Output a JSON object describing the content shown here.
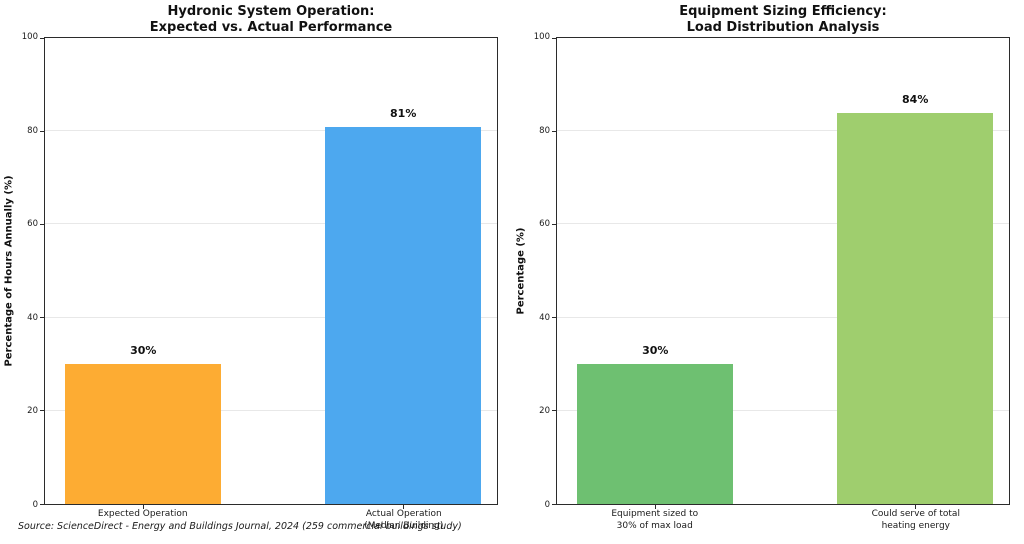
{
  "source_note": "Source: ScienceDirect - Energy and Buildings Journal, 2024 (259 commercial buildings study)",
  "style": {
    "axis_color": "#2b2b2b",
    "grid_color": "#e8e8e8",
    "background": "#ffffff"
  },
  "chart_data": [
    {
      "type": "bar",
      "title": "Hydronic System Operation: Expected vs. Actual Performance",
      "title_lines": [
        "Hydronic System Operation:",
        "Expected vs. Actual Performance"
      ],
      "xlabel": "",
      "ylabel": "Percentage of Hours Annually (%)",
      "ylim": [
        0,
        100
      ],
      "yticks": [
        0,
        20,
        40,
        60,
        80,
        100
      ],
      "grid": true,
      "legend": "none",
      "categories": [
        "Expected Operation",
        "Actual Operation (Median Building)"
      ],
      "category_lines": [
        [
          "Expected Operation"
        ],
        [
          "Actual Operation",
          "(Median Building)"
        ]
      ],
      "values": [
        30,
        81
      ],
      "bar_labels": [
        "30%",
        "81%"
      ],
      "bar_colors": [
        "#FDAC33",
        "#4DA8EF"
      ]
    },
    {
      "type": "bar",
      "title": "Equipment Sizing Efficiency: Load Distribution Analysis",
      "title_lines": [
        "Equipment Sizing Efficiency:",
        "Load Distribution Analysis"
      ],
      "xlabel": "",
      "ylabel": "Percentage (%)",
      "ylim": [
        0,
        100
      ],
      "yticks": [
        0,
        20,
        40,
        60,
        80,
        100
      ],
      "grid": true,
      "legend": "none",
      "categories": [
        "Equipment sized to 30% of max load",
        "Could serve of total heating energy"
      ],
      "category_lines": [
        [
          "Equipment sized to",
          "30% of max load"
        ],
        [
          "Could serve of total",
          "heating energy"
        ]
      ],
      "values": [
        30,
        84
      ],
      "bar_labels": [
        "30%",
        "84%"
      ],
      "bar_colors": [
        "#6EC071",
        "#9FCE6E"
      ]
    }
  ]
}
